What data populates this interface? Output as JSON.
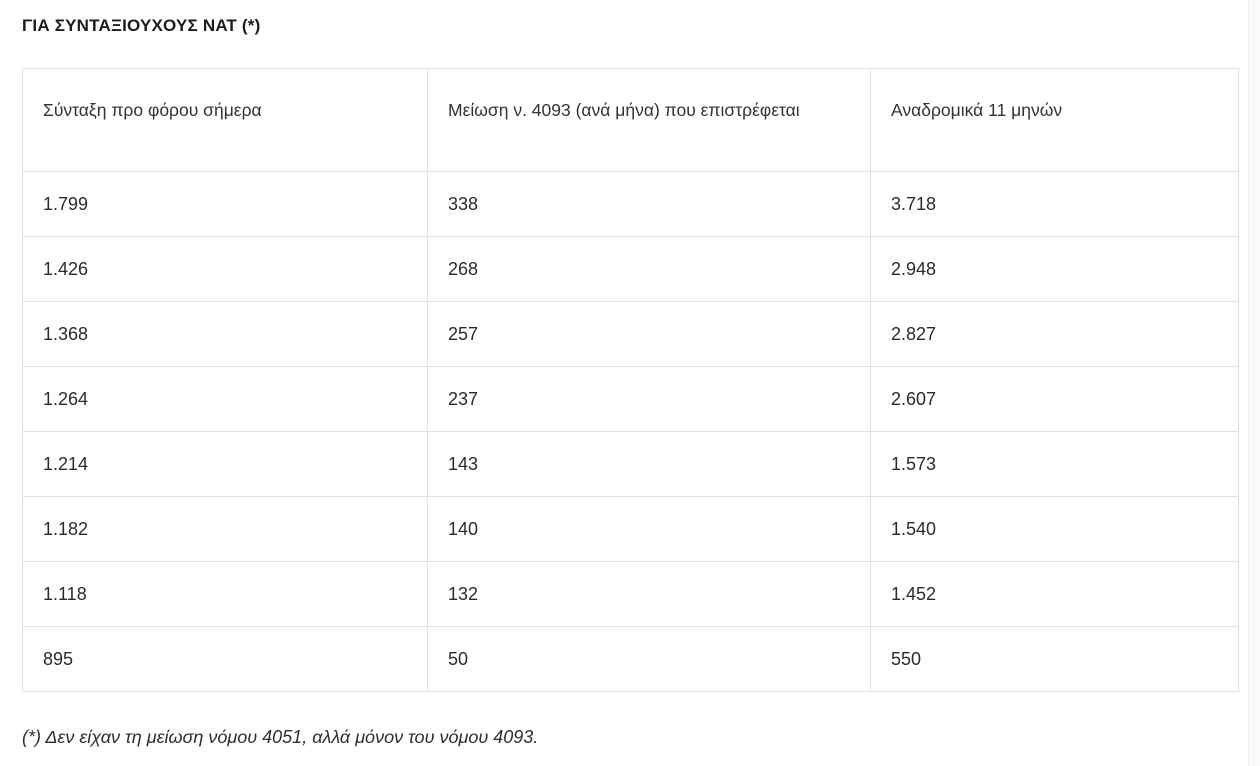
{
  "page": {
    "title": "ΓΙΑ ΣΥΝΤΑΞΙΟΥΧΟΥΣ ΝΑΤ (*)",
    "footnote": "(*) Δεν είχαν τη μείωση νόμου 4051, αλλά μόνον του νόμου 4093."
  },
  "table": {
    "headers": [
      "Σύνταξη προ φόρου σήμερα",
      "Μείωση ν. 4093 (ανά μήνα) που επιστρέφεται",
      "Αναδρομικά 11 μηνών"
    ],
    "rows": [
      [
        "1.799",
        "338",
        "3.718"
      ],
      [
        "1.426",
        "268",
        "2.948"
      ],
      [
        "1.368",
        "257",
        "2.827"
      ],
      [
        "1.264",
        "237",
        "2.607"
      ],
      [
        "1.214",
        "143",
        "1.573"
      ],
      [
        "1.182",
        "140",
        "1.540"
      ],
      [
        "1.118",
        "132",
        "1.452"
      ],
      [
        "895",
        "50",
        "550"
      ]
    ]
  },
  "colors": {
    "background": "#ffffff",
    "border": "#e3e3e3",
    "title_text": "#1b1b1b",
    "body_text": "#2b2b2b"
  }
}
